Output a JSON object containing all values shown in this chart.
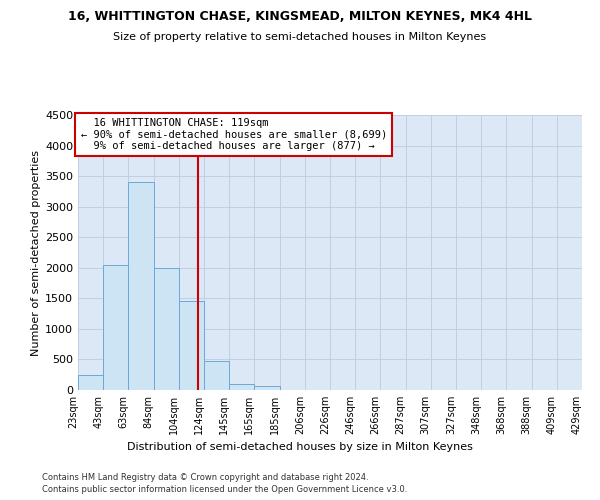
{
  "title": "16, WHITTINGTON CHASE, KINGSMEAD, MILTON KEYNES, MK4 4HL",
  "subtitle": "Size of property relative to semi-detached houses in Milton Keynes",
  "xlabel": "Distribution of semi-detached houses by size in Milton Keynes",
  "ylabel": "Number of semi-detached properties",
  "footer1": "Contains HM Land Registry data © Crown copyright and database right 2024.",
  "footer2": "Contains public sector information licensed under the Open Government Licence v3.0.",
  "annotation_title": "16 WHITTINGTON CHASE: 119sqm",
  "annotation_line1": "← 90% of semi-detached houses are smaller (8,699)",
  "annotation_line2": "9% of semi-detached houses are larger (877) →",
  "property_size": 119,
  "bar_color": "#cde4f5",
  "bar_edge_color": "#6ca8d8",
  "vline_color": "#cc0000",
  "annotation_box_color": "#cc0000",
  "bins": [
    23,
    43,
    63,
    84,
    104,
    124,
    145,
    165,
    185,
    206,
    226,
    246,
    266,
    287,
    307,
    327,
    348,
    368,
    388,
    409,
    429
  ],
  "bin_labels": [
    "23sqm",
    "43sqm",
    "63sqm",
    "84sqm",
    "104sqm",
    "124sqm",
    "145sqm",
    "165sqm",
    "185sqm",
    "206sqm",
    "226sqm",
    "246sqm",
    "266sqm",
    "287sqm",
    "307sqm",
    "327sqm",
    "348sqm",
    "368sqm",
    "388sqm",
    "409sqm",
    "429sqm"
  ],
  "values": [
    250,
    2050,
    3400,
    2000,
    1450,
    470,
    100,
    60,
    0,
    0,
    0,
    0,
    0,
    0,
    0,
    0,
    0,
    0,
    0,
    0
  ],
  "ylim": [
    0,
    4500
  ],
  "yticks": [
    0,
    500,
    1000,
    1500,
    2000,
    2500,
    3000,
    3500,
    4000,
    4500
  ],
  "ax_facecolor": "#dce8f5",
  "background_color": "#ffffff",
  "grid_color": "#bbccdd"
}
